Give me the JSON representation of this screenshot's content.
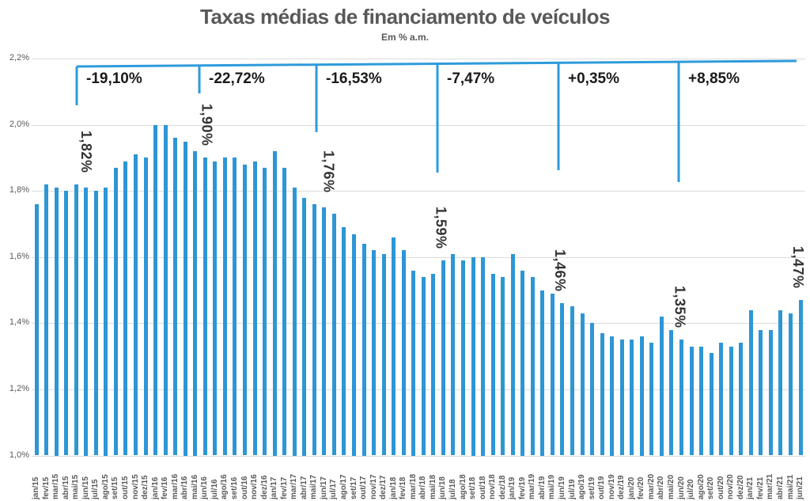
{
  "title": "Taxas médias de financiamento de veículos",
  "subtitle": "Em % a.m.",
  "chart_data": {
    "type": "bar",
    "title": "Taxas médias de financiamento de veículos",
    "subtitle": "Em % a.m.",
    "unit": "% a.m.",
    "ylim": [
      1.0,
      2.2
    ],
    "ytick_labels": [
      "2,2%",
      "2,0%",
      "1,8%",
      "1,6%",
      "1,4%",
      "1,2%",
      "1,0%"
    ],
    "grid": true,
    "legend": false,
    "bar_color": "#2d96d5",
    "annotation_line_color": "#2e9bdb",
    "categories": [
      "jan/15",
      "fev/15",
      "mar/15",
      "abr/15",
      "mai/15",
      "jun/15",
      "jul/15",
      "ago/15",
      "set/15",
      "out/15",
      "nov/15",
      "dez/15",
      "jan/16",
      "fev/16",
      "mar/16",
      "abr/16",
      "mai/16",
      "jun/16",
      "jul/16",
      "ago/16",
      "set/16",
      "out/16",
      "nov/16",
      "dez/16",
      "jan/17",
      "fev/17",
      "mar/17",
      "abr/17",
      "mai/17",
      "jun/17",
      "jul/17",
      "ago/17",
      "set/17",
      "out/17",
      "nov/17",
      "dez/17",
      "jan/18",
      "fev/18",
      "mar/18",
      "abr/18",
      "mai/18",
      "jun/18",
      "jul/18",
      "ago/18",
      "set/18",
      "out/18",
      "nov/18",
      "dez/18",
      "jan/19",
      "fev/19",
      "mar/19",
      "abr/19",
      "mai/19",
      "jun/19",
      "jul/19",
      "ago/19",
      "set/19",
      "out/19",
      "nov/19",
      "dez/19",
      "jan/20",
      "fev/20",
      "mar/20",
      "abr/20",
      "mai/20",
      "jun/20",
      "jul/20",
      "ago/20",
      "set/20",
      "out/20",
      "nov/20",
      "dez/20",
      "jan/21",
      "fev/21",
      "mar/21",
      "abr/21",
      "mai/21",
      "jun/21"
    ],
    "values": [
      1.76,
      1.82,
      1.81,
      1.8,
      1.82,
      1.81,
      1.8,
      1.81,
      1.87,
      1.89,
      1.91,
      1.9,
      2.0,
      2.0,
      1.96,
      1.95,
      1.92,
      1.9,
      1.89,
      1.9,
      1.9,
      1.88,
      1.89,
      1.87,
      1.92,
      1.87,
      1.81,
      1.78,
      1.76,
      1.75,
      1.73,
      1.69,
      1.67,
      1.64,
      1.62,
      1.61,
      1.66,
      1.62,
      1.56,
      1.54,
      1.55,
      1.59,
      1.61,
      1.59,
      1.6,
      1.6,
      1.55,
      1.54,
      1.61,
      1.56,
      1.54,
      1.5,
      1.49,
      1.46,
      1.45,
      1.43,
      1.4,
      1.37,
      1.36,
      1.35,
      1.35,
      1.36,
      1.34,
      1.42,
      1.38,
      1.35,
      1.33,
      1.33,
      1.31,
      1.34,
      1.33,
      1.34,
      1.44,
      1.38,
      1.38,
      1.44,
      1.43,
      1.47
    ],
    "point_labels": [
      {
        "month": "mai/15",
        "index": 4,
        "text": "1,82%",
        "value": 1.82
      },
      {
        "month": "jun/16",
        "index": 17,
        "text": "1,90%",
        "value": 1.9
      },
      {
        "month": "mai/17",
        "index": 28,
        "text": "1,76%",
        "value": 1.76
      },
      {
        "month": "jun/18",
        "index": 41,
        "text": "1,59%",
        "value": 1.59
      },
      {
        "month": "jun/19",
        "index": 53,
        "text": "1,46%",
        "value": 1.46
      },
      {
        "month": "jun/20",
        "index": 65,
        "text": "1,35%",
        "value": 1.35
      },
      {
        "month": "jun/21",
        "index": 77,
        "text": "1,47%",
        "value": 1.47
      }
    ],
    "segment_changes": [
      {
        "label": "-19,10%",
        "from": "mai/15",
        "to": "mai/16"
      },
      {
        "label": "-22,72%",
        "from": "mai/16",
        "to": "mai/17"
      },
      {
        "label": "-16,53%",
        "from": "mai/17",
        "to": "mai/18"
      },
      {
        "label": "-7,47%",
        "from": "mai/18",
        "to": "jun/19"
      },
      {
        "label": "+0,35%",
        "from": "jun/19",
        "to": "jun/20"
      },
      {
        "label": "+8,85%",
        "from": "jun/20",
        "to": "jun/21"
      }
    ]
  }
}
